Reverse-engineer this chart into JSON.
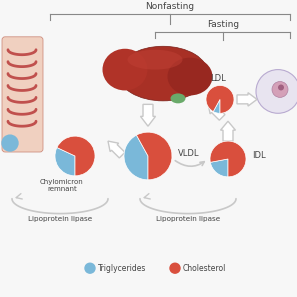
{
  "bg_color": "#f7f7f7",
  "title_nonfasting": "Nonfasting",
  "title_fasting": "Fasting",
  "label_chylomicron": "Chylomicron\nremnant",
  "label_vldl": "VLDL",
  "label_ldl": "LDL",
  "label_idl": "IDL",
  "label_lipo1": "Lipoprotein lipase",
  "label_lipo2": "Lipoprotein lipase",
  "legend_trig": "Triglycerides",
  "legend_chol": "Cholesterol",
  "color_trig": "#7ab8d9",
  "color_chol": "#d94f3d",
  "pie_chylomicron": [
    0.32,
    0.68
  ],
  "pie_vldl": [
    0.42,
    0.58
  ],
  "pie_idl": [
    0.22,
    0.78
  ],
  "pie_ldl": [
    0.08,
    0.92
  ],
  "text_color": "#444444",
  "arrow_color": "#c8c8c8",
  "line_color": "#888888"
}
